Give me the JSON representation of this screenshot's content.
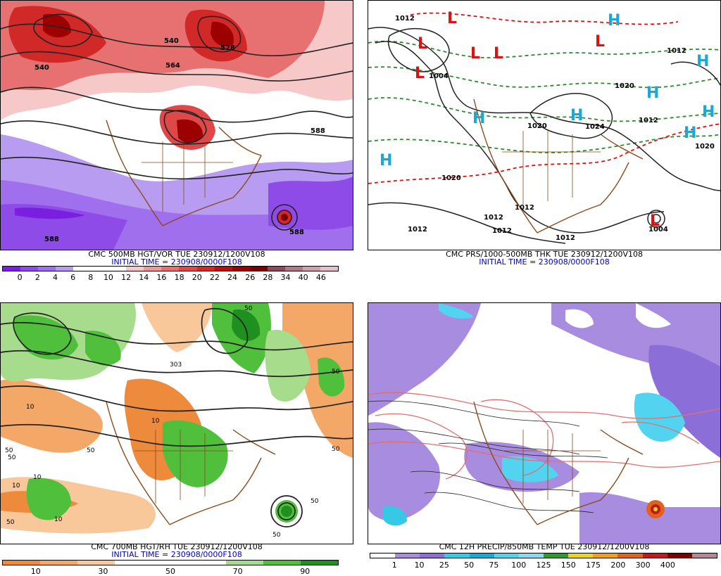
{
  "panels": [
    {
      "title": "CMC 500MB HGT/VOR TUE 230912/1200V108",
      "init": "INITIAL TIME = 230908/0000F108",
      "legend_colors": [
        "#7a1fe0",
        "#8e4be8",
        "#9f6fee",
        "#b79cf2",
        "#ffffff",
        "#ffffff",
        "#ffffff",
        "#f6c8c8",
        "#ee9a9a",
        "#e77070",
        "#df4848",
        "#d12828",
        "#b81010",
        "#9c0000",
        "#7c0000",
        "#8c4b5a",
        "#b07888",
        "#cfa0b0",
        "#e8c0cc"
      ],
      "legend_labels": [
        "0",
        "2",
        "4",
        "6",
        "8",
        "10",
        "12",
        "14",
        "16",
        "18",
        "20",
        "22",
        "24",
        "26",
        "28",
        "34",
        "40",
        "46"
      ],
      "contour_labels": [
        "540",
        "564",
        "528",
        "540",
        "588",
        "588",
        "588"
      ]
    },
    {
      "title": "CMC PRS/1000-500MB THK TUE 230912/1200V108",
      "init": "INITIAL TIME = 230908/0000F108",
      "high_marker": "H",
      "low_marker": "L",
      "pressure_labels": [
        "1012",
        "1004",
        "1012",
        "1020",
        "1020",
        "1024",
        "1020",
        "1012",
        "1020",
        "1012",
        "1012",
        "1012",
        "1012",
        "1004",
        "1012"
      ]
    },
    {
      "title": "CMC 700MB HGT/RH TUE 230912/1200V108",
      "init": "INITIAL TIME = 230908/0000F108",
      "legend_colors": [
        "#ee8a3c",
        "#f4a868",
        "#f8c89a",
        "#ffffff",
        "#ffffff",
        "#ffffff",
        "#a6dc8c",
        "#4fbf3c",
        "#1f8f1f"
      ],
      "legend_labels": [
        "10",
        "30",
        "50",
        "70",
        "90"
      ],
      "contour_labels": [
        "50",
        "50",
        "50",
        "10",
        "10",
        "50",
        "50",
        "10",
        "303",
        "10",
        "50",
        "50",
        "10",
        "50",
        "50"
      ]
    },
    {
      "title": "CMC 12H PRECIP/850MB TEMP TUE 230912/1200V108",
      "legend_colors": [
        "#ffffff",
        "#a88ce0",
        "#8c6ed8",
        "#35c9e6",
        "#1aa8d8",
        "#52d4f0",
        "#8cd8f0",
        "#2e9a2e",
        "#e8d22c",
        "#f0a01e",
        "#e0621c",
        "#c01a1a",
        "#7c0000",
        "#b08a96"
      ],
      "legend_labels": [
        "1",
        "10",
        "25",
        "50",
        "75",
        "100",
        "125",
        "150",
        "175",
        "200",
        "300",
        "400"
      ]
    }
  ]
}
